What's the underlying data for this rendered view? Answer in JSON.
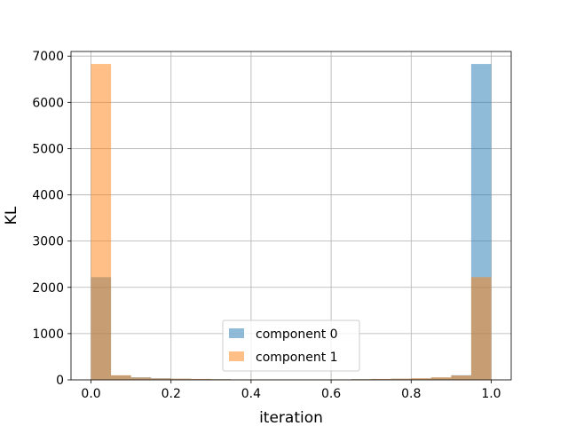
{
  "chart_data": {
    "type": "bar",
    "title": "",
    "xlabel": "iteration",
    "ylabel": "KL",
    "xlim": [
      -0.05,
      1.05
    ],
    "ylim": [
      0,
      7100
    ],
    "grid": true,
    "legend_placement": "lower-center",
    "bins": 20,
    "bin_range": [
      0.0,
      1.0
    ],
    "x_ticks": [
      "0.0",
      "0.2",
      "0.4",
      "0.6",
      "0.8",
      "1.0"
    ],
    "y_ticks": [
      "0",
      "1000",
      "2000",
      "3000",
      "4000",
      "5000",
      "6000",
      "7000"
    ],
    "series": [
      {
        "name": "component 0",
        "color": "#1f77b4",
        "alpha": 0.5,
        "values": [
          2220,
          95,
          55,
          35,
          25,
          20,
          15,
          10,
          10,
          10,
          10,
          10,
          10,
          15,
          20,
          25,
          30,
          50,
          100,
          6830
        ]
      },
      {
        "name": "component 1",
        "color": "#ff7f0e",
        "alpha": 0.5,
        "values": [
          6830,
          100,
          50,
          30,
          25,
          20,
          15,
          10,
          10,
          10,
          10,
          10,
          10,
          15,
          20,
          25,
          35,
          55,
          95,
          2220
        ]
      }
    ]
  }
}
